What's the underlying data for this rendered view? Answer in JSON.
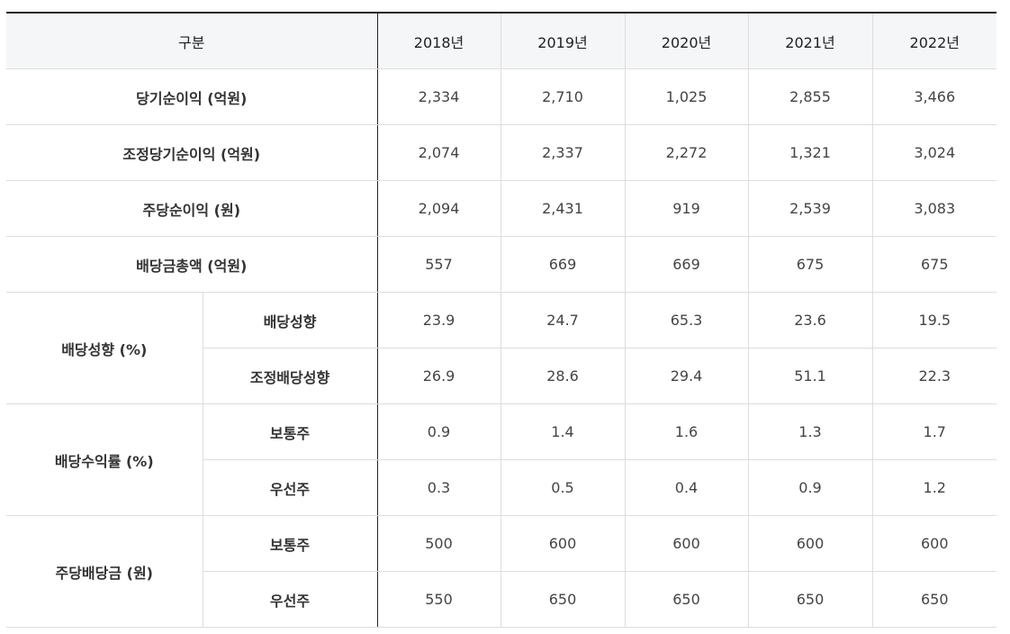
{
  "table": {
    "header": [
      "구분",
      "2018년",
      "2019년",
      "2020년",
      "2021년",
      "2022년"
    ],
    "rows": [
      {
        "label": "당기순이익 (억원)",
        "values": [
          "2,334",
          "2,710",
          "1,025",
          "2,855",
          "3,466"
        ]
      },
      {
        "label": "조정당기순이익 (억원)",
        "values": [
          "2,074",
          "2,337",
          "2,272",
          "1,321",
          "3,024"
        ]
      },
      {
        "label": "주당순이익 (원)",
        "values": [
          "2,094",
          "2,431",
          "919",
          "2,539",
          "3,083"
        ]
      },
      {
        "label": "배당금총액 (억원)",
        "values": [
          "557",
          "669",
          "669",
          "675",
          "675"
        ]
      }
    ],
    "groups": [
      {
        "label": "배당성향 (%)",
        "subrows": [
          {
            "label": "배당성향",
            "values": [
              "23.9",
              "24.7",
              "65.3",
              "23.6",
              "19.5"
            ]
          },
          {
            "label": "조정배당성향",
            "values": [
              "26.9",
              "28.6",
              "29.4",
              "51.1",
              "22.3"
            ]
          }
        ]
      },
      {
        "label": "배당수익률 (%)",
        "subrows": [
          {
            "label": "보통주",
            "values": [
              "0.9",
              "1.4",
              "1.6",
              "1.3",
              "1.7"
            ]
          },
          {
            "label": "우선주",
            "values": [
              "0.3",
              "0.5",
              "0.4",
              "0.9",
              "1.2"
            ]
          }
        ]
      },
      {
        "label": "주당배당금 (원)",
        "subrows": [
          {
            "label": "보통주",
            "values": [
              "500",
              "600",
              "600",
              "600",
              "600"
            ]
          },
          {
            "label": "우선주",
            "values": [
              "550",
              "650",
              "650",
              "650",
              "650"
            ]
          }
        ]
      }
    ]
  }
}
